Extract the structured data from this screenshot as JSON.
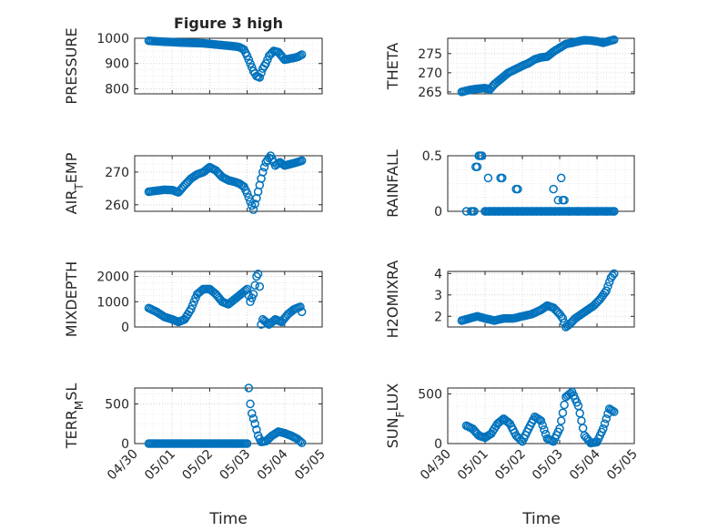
{
  "figure": {
    "title": "Figure 3 high"
  },
  "x_axis": {
    "xlim": [
      "2020-04-30",
      "2020-05-05"
    ],
    "ticks": [
      "04/30",
      "05/01",
      "05/02",
      "05/03",
      "05/04",
      "05/05"
    ],
    "label": "Time"
  },
  "colors": {
    "marker": "#0072BD",
    "grid": "#d0d0d0",
    "axis": "#262626"
  },
  "chart_data": [
    {
      "type": "scatter",
      "ylabel": "PRESSURE",
      "ylim": [
        780,
        1000
      ],
      "yticks": [
        800,
        900,
        1000
      ],
      "x_ticklabels_shown": false,
      "series": [
        {
          "x": [
            "2020-04-30 09:00",
            "2020-04-30 14:00",
            "2020-04-30 19:00",
            "2020-05-01 00:00",
            "2020-05-01 05:00",
            "2020-05-01 10:00",
            "2020-05-01 15:00",
            "2020-05-01 20:00",
            "2020-05-02 01:00",
            "2020-05-02 06:00",
            "2020-05-02 11:00",
            "2020-05-02 16:00",
            "2020-05-02 19:00",
            "2020-05-02 22:00",
            "2020-05-03 00:00",
            "2020-05-03 02:00",
            "2020-05-03 04:00",
            "2020-05-03 06:00",
            "2020-05-03 08:00",
            "2020-05-03 10:00",
            "2020-05-03 12:00",
            "2020-05-03 14:00",
            "2020-05-03 17:00",
            "2020-05-03 20:00",
            "2020-05-04 00:00",
            "2020-05-04 04:00",
            "2020-05-04 08:00",
            "2020-05-04 11:00"
          ],
          "y": [
            990,
            988,
            986,
            985,
            983,
            982,
            981,
            980,
            977,
            974,
            971,
            968,
            965,
            955,
            930,
            900,
            870,
            850,
            845,
            880,
            900,
            930,
            950,
            945,
            915,
            920,
            925,
            935
          ]
        }
      ]
    },
    {
      "type": "scatter",
      "ylabel": "THETA",
      "ylim": [
        264.5,
        279
      ],
      "yticks": [
        265,
        270,
        275
      ],
      "x_ticklabels_shown": false,
      "series": [
        {
          "x": [
            "2020-04-30 09:00",
            "2020-04-30 14:00",
            "2020-04-30 19:00",
            "2020-05-01 00:00",
            "2020-05-01 03:00",
            "2020-05-01 06:00",
            "2020-05-01 09:00",
            "2020-05-01 12:00",
            "2020-05-01 15:00",
            "2020-05-01 18:00",
            "2020-05-01 21:00",
            "2020-05-02 00:00",
            "2020-05-02 04:00",
            "2020-05-02 08:00",
            "2020-05-02 12:00",
            "2020-05-02 16:00",
            "2020-05-02 20:00",
            "2020-05-03 00:00",
            "2020-05-03 04:00",
            "2020-05-03 08:00",
            "2020-05-03 12:00",
            "2020-05-03 16:00",
            "2020-05-03 20:00",
            "2020-05-04 00:00",
            "2020-05-04 04:00",
            "2020-05-04 08:00",
            "2020-05-04 11:00"
          ],
          "y": [
            265,
            265.5,
            265.8,
            266,
            265.6,
            267,
            268,
            269,
            270,
            270.6,
            271.2,
            271.8,
            272.5,
            273.5,
            274,
            274.2,
            275.5,
            276.5,
            277.5,
            277.8,
            278.2,
            278.5,
            278.4,
            278.2,
            277.8,
            278.3,
            278.6
          ]
        }
      ]
    },
    {
      "type": "scatter",
      "ylabel": "AIR_TEMP",
      "ylim": [
        258,
        275
      ],
      "yticks": [
        260,
        270
      ],
      "x_ticklabels_shown": false,
      "series": [
        {
          "x": [
            "2020-04-30 09:00",
            "2020-04-30 14:00",
            "2020-04-30 19:00",
            "2020-05-01 00:00",
            "2020-05-01 04:00",
            "2020-05-01 08:00",
            "2020-05-01 12:00",
            "2020-05-01 16:00",
            "2020-05-01 20:00",
            "2020-05-02 00:00",
            "2020-05-02 04:00",
            "2020-05-02 08:00",
            "2020-05-02 12:00",
            "2020-05-02 16:00",
            "2020-05-02 19:00",
            "2020-05-02 22:00",
            "2020-05-03 00:00",
            "2020-05-03 02:00",
            "2020-05-03 04:00",
            "2020-05-03 06:00",
            "2020-05-03 08:00",
            "2020-05-03 10:00",
            "2020-05-03 12:00",
            "2020-05-03 15:00",
            "2020-05-03 18:00",
            "2020-05-03 21:00",
            "2020-05-04 00:00",
            "2020-05-04 04:00",
            "2020-05-04 08:00",
            "2020-05-04 11:00"
          ],
          "y": [
            264,
            264.3,
            264.6,
            264.5,
            263.8,
            266,
            268,
            269.3,
            270,
            271.5,
            270.5,
            268.5,
            267.5,
            267,
            266.5,
            265.5,
            263.5,
            261,
            258.5,
            262,
            266,
            270,
            273,
            275,
            272,
            273,
            272,
            272.5,
            273,
            273.5
          ]
        }
      ]
    },
    {
      "type": "scatter",
      "ylabel": "RAINFALL",
      "ylim": [
        0,
        0.5
      ],
      "yticks": [
        0,
        0.5
      ],
      "x_ticklabels_shown": false,
      "series": [
        {
          "x": [
            "2020-04-30 12:00",
            "2020-04-30 15:00",
            "2020-04-30 18:00",
            "2020-04-30 19:00",
            "2020-04-30 20:00",
            "2020-04-30 21:00",
            "2020-04-30 22:00",
            "2020-05-01 00:00",
            "2020-05-01 02:00",
            "2020-05-01 10:00",
            "2020-05-01 11:00",
            "2020-05-01 20:00",
            "2020-05-01 21:00",
            "2020-05-02 20:00",
            "2020-05-02 23:00",
            "2020-05-03 01:00",
            "2020-05-03 02:00",
            "2020-05-03 03:00",
            "2020-04-30 16:00",
            "2020-04-30 17:00",
            "2020-05-01 03:00",
            "2020-05-01 06:00",
            "2020-05-01 09:00",
            "2020-05-01 12:00",
            "2020-05-01 15:00",
            "2020-05-01 18:00",
            "2020-05-01 21:00",
            "2020-05-02 00:00",
            "2020-05-02 03:00",
            "2020-05-02 06:00",
            "2020-05-02 09:00",
            "2020-05-02 12:00",
            "2020-05-02 15:00",
            "2020-05-02 18:00",
            "2020-05-02 21:00",
            "2020-05-03 00:00",
            "2020-05-03 06:00",
            "2020-05-03 12:00",
            "2020-05-03 18:00",
            "2020-05-04 00:00",
            "2020-05-04 06:00",
            "2020-05-04 11:00"
          ],
          "y": [
            0,
            0,
            0.4,
            0.4,
            0.5,
            0.5,
            0.5,
            0,
            0.3,
            0.3,
            0.3,
            0.2,
            0.2,
            0.2,
            0.1,
            0.3,
            0.1,
            0.1,
            0,
            0,
            0,
            0,
            0,
            0,
            0,
            0,
            0,
            0,
            0,
            0,
            0,
            0,
            0,
            0,
            0,
            0,
            0,
            0,
            0,
            0,
            0,
            0
          ]
        }
      ]
    },
    {
      "type": "scatter",
      "ylabel": "MIXDEPTH",
      "ylim": [
        0,
        2200
      ],
      "yticks": [
        0,
        1000,
        2000
      ],
      "x_ticklabels_shown": false,
      "series": [
        {
          "x": [
            "2020-04-30 09:00",
            "2020-04-30 14:00",
            "2020-04-30 19:00",
            "2020-05-01 00:00",
            "2020-05-01 04:00",
            "2020-05-01 08:00",
            "2020-05-01 12:00",
            "2020-05-01 16:00",
            "2020-05-01 20:00",
            "2020-05-02 00:00",
            "2020-05-02 04:00",
            "2020-05-02 08:00",
            "2020-05-02 12:00",
            "2020-05-02 16:00",
            "2020-05-02 20:00",
            "2020-05-03 00:00",
            "2020-05-03 02:00",
            "2020-05-03 04:00",
            "2020-05-03 06:00",
            "2020-05-03 07:00",
            "2020-05-03 08:00",
            "2020-05-03 09:00",
            "2020-05-03 10:00",
            "2020-05-03 14:00",
            "2020-05-03 18:00",
            "2020-05-03 22:00",
            "2020-05-04 02:00",
            "2020-05-04 06:00",
            "2020-05-04 10:00",
            "2020-05-04 11:00"
          ],
          "y": [
            750,
            600,
            400,
            300,
            200,
            300,
            700,
            1300,
            1500,
            1500,
            1300,
            1000,
            900,
            1100,
            1300,
            1500,
            1000,
            1300,
            2000,
            2100,
            1600,
            100,
            300,
            100,
            300,
            200,
            500,
            700,
            800,
            600
          ]
        }
      ]
    },
    {
      "type": "scatter",
      "ylabel": "H2OMIXRA",
      "ylim": [
        1.5,
        4.1
      ],
      "yticks": [
        2,
        3,
        4
      ],
      "x_ticklabels_shown": false,
      "series": [
        {
          "x": [
            "2020-04-30 09:00",
            "2020-04-30 14:00",
            "2020-04-30 19:00",
            "2020-05-01 00:00",
            "2020-05-01 06:00",
            "2020-05-01 12:00",
            "2020-05-01 18:00",
            "2020-05-02 00:00",
            "2020-05-02 06:00",
            "2020-05-02 12:00",
            "2020-05-02 16:00",
            "2020-05-02 20:00",
            "2020-05-03 00:00",
            "2020-05-03 02:00",
            "2020-05-03 04:00",
            "2020-05-03 06:00",
            "2020-05-03 10:00",
            "2020-05-03 14:00",
            "2020-05-03 18:00",
            "2020-05-03 22:00",
            "2020-05-04 02:00",
            "2020-05-04 06:00",
            "2020-05-04 09:00",
            "2020-05-04 11:00"
          ],
          "y": [
            1.8,
            1.9,
            2.0,
            1.9,
            1.8,
            1.9,
            1.9,
            2.0,
            2.1,
            2.3,
            2.5,
            2.4,
            2.1,
            1.9,
            1.5,
            1.6,
            1.9,
            2.1,
            2.3,
            2.5,
            2.8,
            3.2,
            3.8,
            4.0
          ]
        }
      ]
    },
    {
      "type": "scatter",
      "ylabel": "TERR_MSL",
      "ylim": [
        0,
        700
      ],
      "yticks": [
        0,
        500
      ],
      "x_ticklabels_shown": true,
      "series": [
        {
          "x": [
            "2020-04-30 09:00",
            "2020-04-30 15:00",
            "2020-04-30 21:00",
            "2020-05-01 03:00",
            "2020-05-01 09:00",
            "2020-05-01 15:00",
            "2020-05-01 21:00",
            "2020-05-02 03:00",
            "2020-05-02 09:00",
            "2020-05-02 15:00",
            "2020-05-02 21:00",
            "2020-05-03 00:00",
            "2020-05-03 01:00",
            "2020-05-03 02:00",
            "2020-05-03 03:00",
            "2020-05-03 05:00",
            "2020-05-03 07:00",
            "2020-05-03 09:00",
            "2020-05-03 12:00",
            "2020-05-03 16:00",
            "2020-05-03 20:00",
            "2020-05-04 00:00",
            "2020-05-04 04:00",
            "2020-05-04 08:00",
            "2020-05-04 11:00"
          ],
          "y": [
            0,
            0,
            0,
            0,
            0,
            0,
            0,
            0,
            0,
            0,
            0,
            0,
            700,
            500,
            380,
            250,
            100,
            20,
            30,
            100,
            150,
            130,
            100,
            60,
            10
          ]
        }
      ]
    },
    {
      "type": "scatter",
      "ylabel": "SUN_FLUX",
      "ylim": [
        0,
        560
      ],
      "yticks": [
        0,
        500
      ],
      "x_ticklabels_shown": true,
      "series": [
        {
          "x": [
            "2020-04-30 12:00",
            "2020-04-30 16:00",
            "2020-04-30 20:00",
            "2020-05-01 00:00",
            "2020-05-01 04:00",
            "2020-05-01 08:00",
            "2020-05-01 12:00",
            "2020-05-01 16:00",
            "2020-05-01 20:00",
            "2020-05-02 00:00",
            "2020-05-02 04:00",
            "2020-05-02 08:00",
            "2020-05-02 12:00",
            "2020-05-02 16:00",
            "2020-05-02 20:00",
            "2020-05-03 00:00",
            "2020-05-03 04:00",
            "2020-05-03 08:00",
            "2020-05-03 12:00",
            "2020-05-03 16:00",
            "2020-05-03 20:00",
            "2020-05-04 00:00",
            "2020-05-04 04:00",
            "2020-05-04 08:00",
            "2020-05-04 11:00"
          ],
          "y": [
            180,
            150,
            80,
            60,
            100,
            200,
            250,
            200,
            80,
            20,
            150,
            270,
            230,
            50,
            20,
            150,
            470,
            520,
            380,
            80,
            5,
            15,
            150,
            350,
            320
          ]
        }
      ]
    }
  ]
}
